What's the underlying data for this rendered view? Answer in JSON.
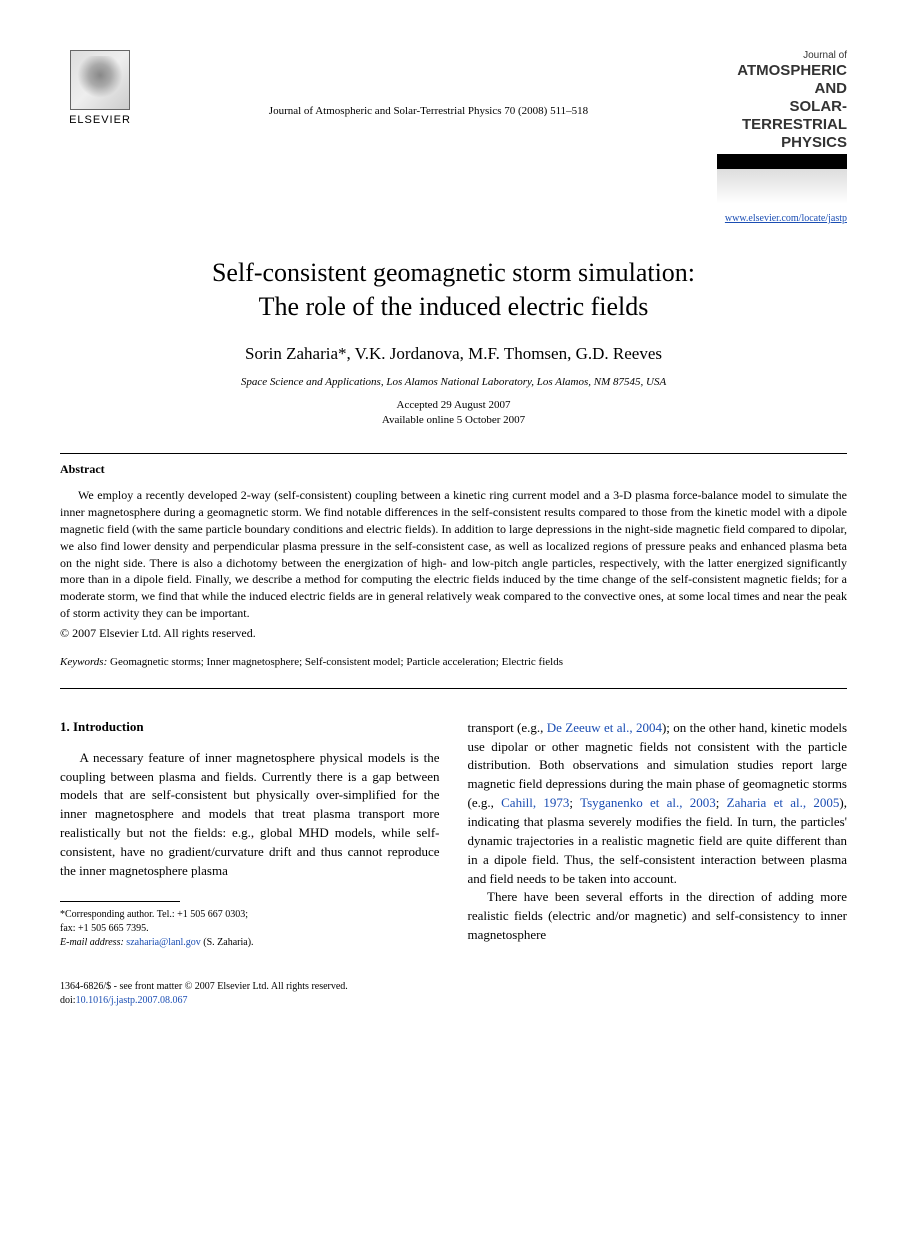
{
  "publisher": {
    "name": "ELSEVIER"
  },
  "journal_ref": "Journal of Atmospheric and Solar-Terrestrial Physics 70 (2008) 511–518",
  "journal_cover": {
    "small_line": "Journal of",
    "line1": "ATMOSPHERIC AND",
    "line2": "SOLAR-TERRESTRIAL",
    "line3": "PHYSICS",
    "link": "www.elsevier.com/locate/jastp"
  },
  "title": {
    "line1": "Self-consistent geomagnetic storm simulation:",
    "line2": "The role of the induced electric fields"
  },
  "authors": "Sorin Zaharia*, V.K. Jordanova, M.F. Thomsen, G.D. Reeves",
  "affiliation": "Space Science and Applications, Los Alamos National Laboratory, Los Alamos, NM 87545, USA",
  "dates": {
    "accepted": "Accepted 29 August 2007",
    "online": "Available online 5 October 2007"
  },
  "abstract": {
    "heading": "Abstract",
    "text": "We employ a recently developed 2-way (self-consistent) coupling between a kinetic ring current model and a 3-D plasma force-balance model to simulate the inner magnetosphere during a geomagnetic storm. We find notable differences in the self-consistent results compared to those from the kinetic model with a dipole magnetic field (with the same particle boundary conditions and electric fields). In addition to large depressions in the night-side magnetic field compared to dipolar, we also find lower density and perpendicular plasma pressure in the self-consistent case, as well as localized regions of pressure peaks and enhanced plasma beta on the night side. There is also a dichotomy between the energization of high- and low-pitch angle particles, respectively, with the latter energized significantly more than in a dipole field. Finally, we describe a method for computing the electric fields induced by the time change of the self-consistent magnetic fields; for a moderate storm, we find that while the induced electric fields are in general relatively weak compared to the convective ones, at some local times and near the peak of storm activity they can be important.",
    "copyright": "© 2007 Elsevier Ltd. All rights reserved."
  },
  "keywords": {
    "label": "Keywords:",
    "text": " Geomagnetic storms; Inner magnetosphere; Self-consistent model; Particle acceleration; Electric fields"
  },
  "section1": {
    "heading": "1. Introduction",
    "col1_p1": "A necessary feature of inner magnetosphere physical models is the coupling between plasma and fields. Currently there is a gap between models that are self-consistent but physically over-simplified for the inner magnetosphere and models that treat plasma transport more realistically but not the fields: e.g., global MHD models, while self-consistent, have no gradient/curvature drift and thus cannot reproduce the inner magnetosphere plasma",
    "col2_p1_a": "transport (e.g., ",
    "col2_cite1": "De Zeeuw et al., 2004",
    "col2_p1_b": "); on the other hand, kinetic models use dipolar or other magnetic fields not consistent with the particle distribution. Both observations and simulation studies report large magnetic field depressions during the main phase of geomagnetic storms (e.g., ",
    "col2_cite2": "Cahill, 1973",
    "col2_p1_c": "; ",
    "col2_cite3": "Tsyganenko et al., 2003",
    "col2_p1_d": "; ",
    "col2_cite4": "Zaharia et al., 2005",
    "col2_p1_e": "), indicating that plasma severely modifies the field. In turn, the particles' dynamic trajectories in a realistic magnetic field are quite different than in a dipole field. Thus, the self-consistent interaction between plasma and field needs to be taken into account.",
    "col2_p2": "There have been several efforts in the direction of adding more realistic fields (electric and/or magnetic) and self-consistency to inner magnetosphere"
  },
  "footnote": {
    "corr": "*Corresponding author. Tel.: +1 505 667 0303;",
    "fax": "fax: +1 505 665 7395.",
    "email_label": "E-mail address:",
    "email": " szaharia@lanl.gov",
    "email_suffix": " (S. Zaharia)."
  },
  "footer": {
    "issn": "1364-6826/$ - see front matter © 2007 Elsevier Ltd. All rights reserved.",
    "doi_label": "doi:",
    "doi": "10.1016/j.jastp.2007.08.067"
  },
  "colors": {
    "link": "#1a4db3",
    "text": "#000000",
    "background": "#ffffff"
  }
}
